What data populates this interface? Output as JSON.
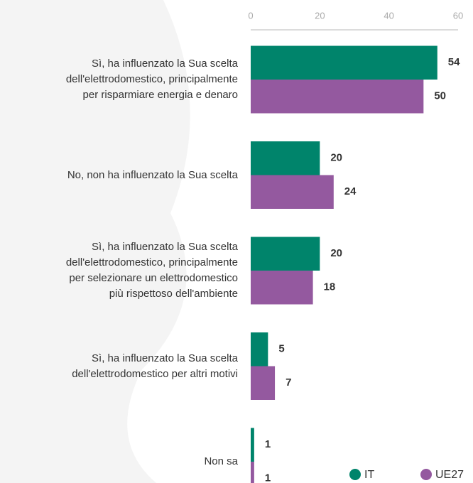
{
  "chart_data": {
    "type": "bar",
    "orientation": "horizontal",
    "categories": [
      "Sì, ha influenzato la Sua scelta\ndell'elettrodomestico, principalmente\nper risparmiare energia e denaro",
      "No, non ha influenzato la Sua scelta",
      "Sì, ha influenzato la Sua scelta\ndell'elettrodomestico, principalmente\nper selezionare un elettrodomestico\npiù rispettoso dell'ambiente",
      "Sì, ha influenzato la Sua scelta\ndell'elettrodomestico per altri motivi",
      "Non sa"
    ],
    "series": [
      {
        "name": "IT",
        "color": "#00846b",
        "values": [
          54,
          20,
          20,
          5,
          1
        ]
      },
      {
        "name": "UE27",
        "color": "#94599f",
        "values": [
          50,
          24,
          18,
          7,
          1
        ]
      }
    ],
    "xlim": [
      0,
      60
    ],
    "xticks": [
      0,
      20,
      40,
      60
    ],
    "legend": "bottom-right"
  }
}
